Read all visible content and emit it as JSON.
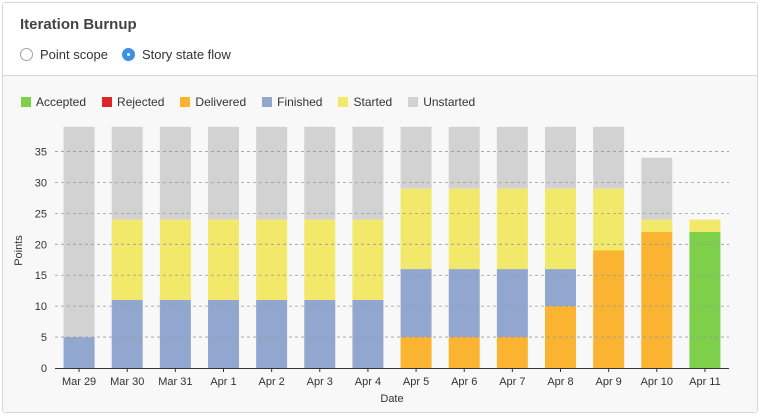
{
  "header": {
    "title": "Iteration Burnup",
    "options": [
      {
        "label": "Point scope",
        "selected": false
      },
      {
        "label": "Story state flow",
        "selected": true
      }
    ]
  },
  "legend": [
    {
      "label": "Accepted",
      "color": "#7ed04a"
    },
    {
      "label": "Rejected",
      "color": "#e0242b"
    },
    {
      "label": "Delivered",
      "color": "#fbb332"
    },
    {
      "label": "Finished",
      "color": "#91a7d0"
    },
    {
      "label": "Started",
      "color": "#f2e86a"
    },
    {
      "label": "Unstarted",
      "color": "#d2d2d2"
    }
  ],
  "chart_data": {
    "type": "bar",
    "stacked": true,
    "xlabel": "Date",
    "ylabel": "Points",
    "ylim": [
      0,
      38
    ],
    "yticks": [
      0,
      5,
      10,
      15,
      20,
      25,
      30,
      35
    ],
    "grid": true,
    "categories": [
      "Mar 29",
      "Mar 30",
      "Mar 31",
      "Apr 1",
      "Apr 2",
      "Apr 3",
      "Apr 4",
      "Apr 5",
      "Apr 6",
      "Apr 7",
      "Apr 8",
      "Apr 9",
      "Apr 10",
      "Apr 11"
    ],
    "series": [
      {
        "name": "Accepted",
        "color": "#7ed04a",
        "values": [
          0,
          0,
          0,
          0,
          0,
          0,
          0,
          0,
          0,
          0,
          0,
          0,
          0,
          22
        ]
      },
      {
        "name": "Rejected",
        "color": "#e0242b",
        "values": [
          0,
          0,
          0,
          0,
          0,
          0,
          0,
          0,
          0,
          0,
          0,
          0,
          0,
          0
        ]
      },
      {
        "name": "Delivered",
        "color": "#fbb332",
        "values": [
          0,
          0,
          0,
          0,
          0,
          0,
          0,
          5,
          5,
          5,
          10,
          19,
          22,
          0
        ]
      },
      {
        "name": "Finished",
        "color": "#91a7d0",
        "values": [
          5,
          11,
          11,
          11,
          11,
          11,
          11,
          11,
          11,
          11,
          6,
          0,
          0,
          0
        ]
      },
      {
        "name": "Started",
        "color": "#f2e86a",
        "values": [
          0,
          13,
          13,
          13,
          13,
          13,
          13,
          13,
          13,
          13,
          13,
          10,
          2,
          2
        ]
      },
      {
        "name": "Unstarted",
        "color": "#d2d2d2",
        "values": [
          34,
          15,
          15,
          15,
          15,
          15,
          15,
          10,
          10,
          10,
          10,
          10,
          10,
          0
        ]
      }
    ]
  }
}
